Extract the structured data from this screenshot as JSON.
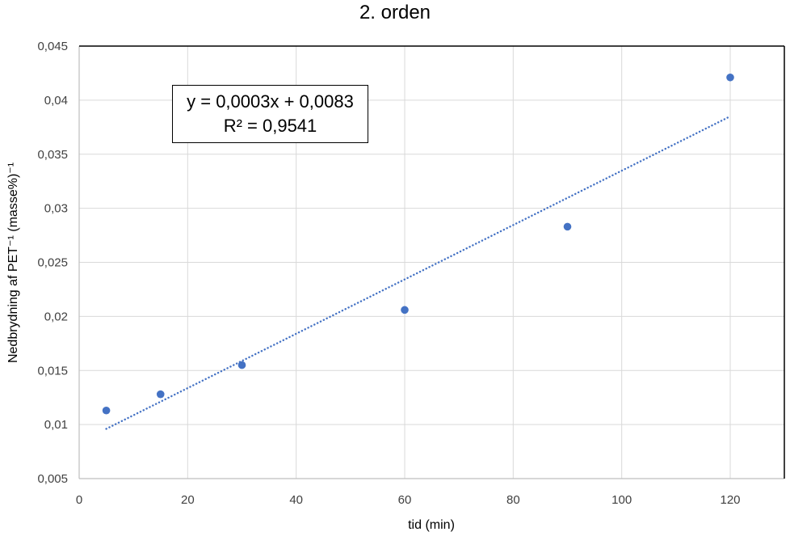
{
  "chart_data": {
    "type": "scatter",
    "title": "2. orden",
    "xlabel": "tid (min)",
    "ylabel": "Nedbrydning af PET⁻¹ (masse%)⁻¹",
    "xlim": [
      0,
      130
    ],
    "ylim": [
      0.005,
      0.045
    ],
    "x_ticks": [
      0,
      20,
      40,
      60,
      80,
      100,
      120
    ],
    "x_tick_labels": [
      "0",
      "20",
      "40",
      "60",
      "80",
      "100",
      "120"
    ],
    "y_ticks": [
      0.005,
      0.01,
      0.015,
      0.02,
      0.025,
      0.03,
      0.035,
      0.04,
      0.045
    ],
    "y_tick_labels": [
      "0,005",
      "0,01",
      "0,015",
      "0,02",
      "0,025",
      "0,03",
      "0,035",
      "0,04",
      "0,045"
    ],
    "grid": true,
    "legend": null,
    "series": [
      {
        "name": "data",
        "color": "#4472C4",
        "x": [
          5,
          15,
          30,
          60,
          90,
          120
        ],
        "y": [
          0.0113,
          0.0128,
          0.0155,
          0.0206,
          0.0283,
          0.0421
        ]
      }
    ],
    "trendline": {
      "type": "linear",
      "style": "dotted",
      "color": "#4472C4",
      "x_range": [
        5,
        120
      ],
      "y_range": [
        0.0096,
        0.0385
      ],
      "equation": "y = 0,0003x + 0,0083",
      "r_squared": "R² = 0,9541"
    }
  },
  "annotation": {
    "equation": "y = 0,0003x + 0,0083",
    "r_squared": "R² = 0,9541"
  }
}
